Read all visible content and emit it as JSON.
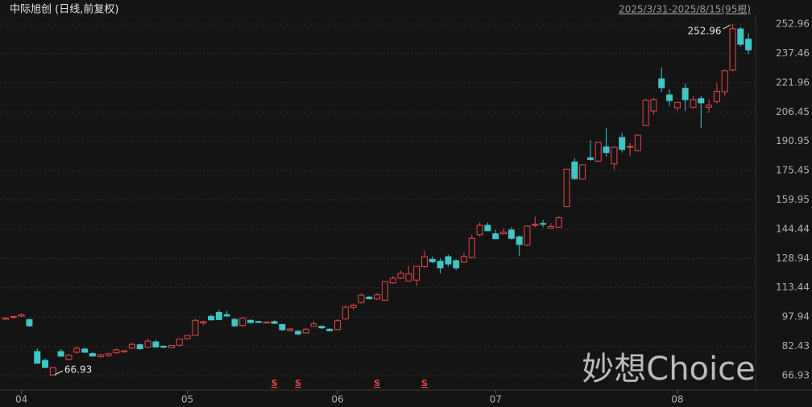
{
  "chart_data": {
    "type": "candlestick",
    "title": "中际旭创 (日线,前复权)",
    "range_label": "2025/3/31-2025/8/15(95根)",
    "watermark": "妙想Choice",
    "up_color": "#e8474a",
    "down_color": "#3fc6c6",
    "ylim": [
      59.27,
      258.07
    ],
    "yticks": [
      252.96,
      237.46,
      221.96,
      206.45,
      190.95,
      175.45,
      159.95,
      144.44,
      128.94,
      113.44,
      97.94,
      82.43,
      66.93
    ],
    "xticks": [
      {
        "value": 2,
        "label": "04"
      },
      {
        "value": 23,
        "label": "05"
      },
      {
        "value": 42,
        "label": "06"
      },
      {
        "value": 62,
        "label": "07"
      },
      {
        "value": 85,
        "label": "08"
      }
    ],
    "grid": true,
    "max": {
      "value": 252.96,
      "index": 92
    },
    "min": {
      "value": 66.93,
      "index": 6
    },
    "signals": [
      {
        "index": 34,
        "label": "S"
      },
      {
        "index": 37,
        "label": "S"
      },
      {
        "index": 47,
        "label": "S"
      },
      {
        "index": 53,
        "label": "S"
      }
    ],
    "ohlc": [
      [
        96.8,
        98,
        96.5,
        97.4
      ],
      [
        97.8,
        98.6,
        97.2,
        98.2
      ],
      [
        98.5,
        99.8,
        98,
        99.2
      ],
      [
        96.6,
        97,
        92.8,
        93.3
      ],
      [
        79.7,
        81.4,
        73.3,
        73.5
      ],
      [
        75,
        76,
        70.8,
        71.3
      ],
      [
        67.3,
        71.5,
        66.93,
        71.2
      ],
      [
        79.7,
        81,
        77,
        77.2
      ],
      [
        75.5,
        78.5,
        75,
        77.8
      ],
      [
        79.3,
        82.4,
        78.5,
        81.4
      ],
      [
        81,
        81.8,
        79,
        79.3
      ],
      [
        78.6,
        79.5,
        77,
        77.3
      ],
      [
        77,
        78.5,
        76.5,
        78
      ],
      [
        77.5,
        79,
        77,
        78.5
      ],
      [
        79,
        81.3,
        78.5,
        80.6
      ],
      [
        79.5,
        80.5,
        79,
        80.1
      ],
      [
        81.5,
        84.5,
        81,
        83.5
      ],
      [
        83.3,
        84,
        80.5,
        81.2
      ],
      [
        82,
        86.5,
        81.5,
        85.2
      ],
      [
        84.8,
        85.8,
        81.8,
        82.1
      ],
      [
        82.5,
        83,
        81.5,
        82
      ],
      [
        81.8,
        83,
        81.3,
        82.9
      ],
      [
        83,
        86,
        82.5,
        86.3
      ],
      [
        86.5,
        88.5,
        86,
        88.2
      ],
      [
        88.2,
        97,
        88,
        96.2
      ],
      [
        94.8,
        96,
        93.5,
        95.5
      ],
      [
        98.3,
        99.2,
        96.2,
        96.4
      ],
      [
        100.4,
        101.8,
        96.2,
        96.6
      ],
      [
        99.2,
        101.3,
        98,
        98.5
      ],
      [
        96.7,
        97.5,
        92.8,
        93.3
      ],
      [
        93.5,
        97.8,
        93,
        97.4
      ],
      [
        96.2,
        96.8,
        94.6,
        95
      ],
      [
        95.6,
        96,
        94.8,
        95.1
      ],
      [
        94.8,
        95.6,
        94.5,
        95.3
      ],
      [
        95.5,
        96.2,
        94.3,
        94.6
      ],
      [
        94,
        94.5,
        90.6,
        91.2
      ],
      [
        90.8,
        92.2,
        90.4,
        91.6
      ],
      [
        90.4,
        91,
        88.4,
        89
      ],
      [
        89.5,
        92,
        89.2,
        91.5
      ],
      [
        93,
        96,
        92.8,
        94.3
      ],
      [
        93,
        93.5,
        91.6,
        92.2
      ],
      [
        91.5,
        92,
        90.3,
        90.7
      ],
      [
        91.3,
        97,
        91,
        96
      ],
      [
        97,
        104,
        96.5,
        103.1
      ],
      [
        103,
        105,
        102,
        104.2
      ],
      [
        105.6,
        110.5,
        105,
        109.5
      ],
      [
        108.5,
        109.2,
        107.2,
        107.6
      ],
      [
        107.5,
        110.6,
        107,
        109.7
      ],
      [
        106.8,
        117,
        106.5,
        116.7
      ],
      [
        116,
        119.5,
        115.5,
        118.5
      ],
      [
        118.5,
        122.5,
        118,
        121.1
      ],
      [
        117,
        125,
        116.7,
        120.8
      ],
      [
        117.5,
        124.9,
        114.5,
        124.8
      ],
      [
        124.6,
        133,
        124,
        129.9
      ],
      [
        128.5,
        130,
        126.5,
        127.2
      ],
      [
        127.5,
        129,
        121,
        124
      ],
      [
        129.9,
        131,
        124.5,
        126
      ],
      [
        127.8,
        128.5,
        122.8,
        124
      ],
      [
        127,
        132,
        126.5,
        130
      ],
      [
        129.5,
        141.5,
        129,
        139.6
      ],
      [
        141.5,
        148,
        140.5,
        146.5
      ],
      [
        146.5,
        148,
        143.5,
        143.6
      ],
      [
        142,
        144,
        139.3,
        139.4
      ],
      [
        142,
        145,
        141.6,
        142.9
      ],
      [
        144,
        145.5,
        139,
        139.6
      ],
      [
        140.4,
        141,
        130.3,
        136.3
      ],
      [
        136,
        146.5,
        135.5,
        146.1
      ],
      [
        146.5,
        151,
        145.5,
        147
      ],
      [
        147.5,
        149.5,
        145.5,
        147
      ],
      [
        145,
        147.5,
        144.8,
        145.9
      ],
      [
        145.5,
        151.5,
        145,
        150.5
      ],
      [
        156.5,
        176.5,
        156,
        176.2
      ],
      [
        180,
        182,
        170.5,
        171.2
      ],
      [
        171,
        178.8,
        170.5,
        178.5
      ],
      [
        182.2,
        191.5,
        180.6,
        181.3
      ],
      [
        180.5,
        190.5,
        180,
        190.3
      ],
      [
        188,
        198,
        183,
        185
      ],
      [
        179,
        188.2,
        176,
        187.8
      ],
      [
        193,
        195.5,
        185,
        186.6
      ],
      [
        188,
        190,
        183,
        188.2
      ],
      [
        186,
        194.5,
        185.5,
        194.2
      ],
      [
        199.3,
        213.5,
        199,
        212.7
      ],
      [
        207,
        214,
        205,
        213
      ],
      [
        224,
        230,
        217,
        219.3
      ],
      [
        215.5,
        218.5,
        209.5,
        212.5
      ],
      [
        208.7,
        211.8,
        207,
        211.5
      ],
      [
        219,
        221.5,
        207,
        213
      ],
      [
        209,
        215,
        208,
        213
      ],
      [
        213.5,
        215,
        198,
        211.3
      ],
      [
        209,
        213,
        206,
        210
      ],
      [
        212,
        221.7,
        211,
        217.4
      ],
      [
        217.2,
        229,
        215,
        228.3
      ],
      [
        228.7,
        252.96,
        228,
        250.5
      ],
      [
        250.4,
        251.5,
        241,
        242.3
      ],
      [
        245,
        248,
        237,
        239.3
      ]
    ]
  }
}
